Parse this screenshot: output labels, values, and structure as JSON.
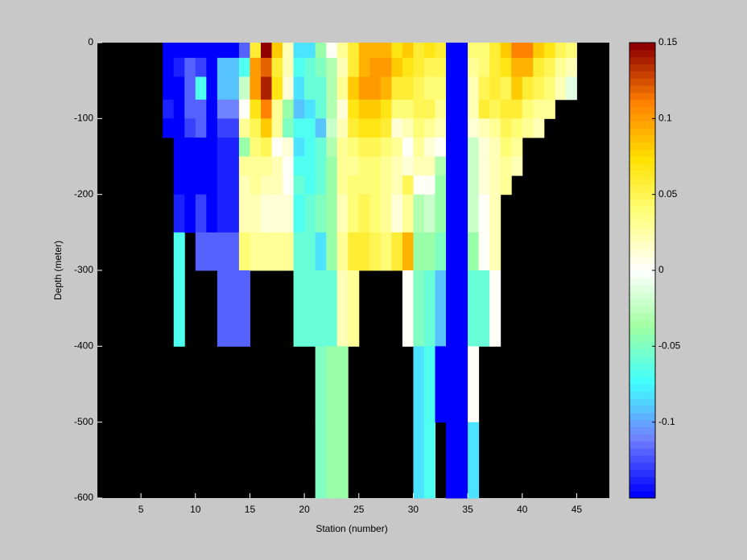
{
  "chart_data": {
    "type": "heatmap",
    "xlabel": "Station (number)",
    "ylabel": "Depth (meter)",
    "xlim": [
      1,
      48
    ],
    "ylim": [
      -600,
      0
    ],
    "xticks": [
      5,
      10,
      15,
      20,
      25,
      30,
      35,
      40,
      45
    ],
    "yticks": [
      0,
      -100,
      -200,
      -300,
      -400,
      -500,
      -600
    ],
    "clim": [
      -0.15,
      0.15
    ],
    "cticks": [
      0.15,
      0.1,
      0.05,
      0,
      -0.05,
      -0.1
    ],
    "colormap": [
      "#0000ff",
      "#7080ff",
      "#40ffff",
      "#a0ffa0",
      "#ffffff",
      "#ffff80",
      "#ffe000",
      "#ff8000",
      "#900000"
    ],
    "background": "#000000",
    "x_edges": [
      7,
      8,
      9,
      10,
      11,
      12,
      13,
      14,
      15,
      16,
      17,
      18,
      19,
      20,
      21,
      22,
      23,
      24,
      25,
      26,
      27,
      28,
      29,
      30,
      31,
      32,
      33,
      34,
      35,
      36,
      37,
      38,
      39,
      40,
      41,
      42,
      43,
      44,
      45
    ],
    "y_edges": [
      0,
      -20,
      -45,
      -75,
      -100,
      -125,
      -150,
      -175,
      -200,
      -250,
      -300,
      -400,
      -500,
      -600
    ],
    "values": [
      [
        -0.15,
        -0.15,
        -0.15,
        -0.14,
        -0.15,
        null,
        null,
        null,
        null,
        null,
        null,
        null,
        null
      ],
      [
        -0.15,
        -0.14,
        -0.15,
        -0.15,
        -0.15,
        -0.15,
        -0.15,
        -0.15,
        -0.14,
        -0.07,
        -0.07,
        null,
        null
      ],
      [
        -0.15,
        -0.12,
        -0.12,
        -0.12,
        -0.13,
        -0.15,
        -0.15,
        -0.15,
        -0.15,
        null,
        null,
        null,
        null
      ],
      [
        -0.15,
        -0.13,
        -0.07,
        -0.12,
        -0.12,
        -0.15,
        -0.15,
        -0.15,
        -0.13,
        -0.12,
        null,
        null,
        null
      ],
      [
        -0.15,
        -0.15,
        -0.15,
        -0.15,
        -0.15,
        -0.15,
        -0.15,
        -0.15,
        -0.15,
        -0.12,
        null,
        null,
        null
      ],
      [
        -0.15,
        -0.09,
        -0.09,
        -0.11,
        -0.13,
        -0.14,
        -0.14,
        -0.14,
        -0.14,
        -0.12,
        -0.12,
        null,
        null
      ],
      [
        -0.15,
        -0.09,
        -0.09,
        -0.11,
        -0.13,
        -0.14,
        -0.14,
        -0.14,
        -0.14,
        -0.12,
        -0.12,
        null,
        null
      ],
      [
        -0.12,
        -0.07,
        -0.02,
        0.0,
        0.03,
        -0.04,
        0.03,
        0.02,
        0.02,
        0.04,
        -0.12,
        null,
        null
      ],
      [
        0.06,
        0.1,
        0.1,
        0.07,
        0.05,
        0.04,
        0.03,
        0.03,
        0.02,
        0.03,
        null,
        null,
        null
      ],
      [
        0.15,
        0.12,
        0.14,
        0.11,
        0.08,
        0.05,
        0.03,
        0.02,
        0.01,
        0.03,
        null,
        null,
        null
      ],
      [
        0.08,
        0.06,
        0.07,
        0.03,
        0.03,
        0.0,
        0.02,
        0.02,
        0.01,
        0.03,
        null,
        null,
        null
      ],
      [
        0.02,
        0.02,
        0.01,
        -0.04,
        -0.05,
        0.01,
        0.0,
        0.0,
        0.01,
        0.03,
        null,
        null,
        null
      ],
      [
        -0.08,
        -0.07,
        -0.08,
        -0.09,
        -0.07,
        -0.08,
        -0.07,
        -0.06,
        -0.07,
        -0.06,
        -0.06,
        null,
        null
      ],
      [
        -0.08,
        -0.06,
        -0.06,
        -0.08,
        -0.07,
        -0.07,
        -0.07,
        -0.07,
        -0.06,
        -0.06,
        -0.06,
        null,
        null
      ],
      [
        -0.04,
        -0.05,
        -0.06,
        -0.06,
        -0.09,
        -0.06,
        -0.06,
        -0.06,
        -0.05,
        -0.08,
        -0.06,
        -0.05,
        -0.05
      ],
      [
        0.0,
        -0.03,
        -0.03,
        -0.03,
        -0.02,
        -0.03,
        -0.04,
        -0.04,
        -0.04,
        -0.04,
        -0.06,
        -0.04,
        -0.04
      ],
      [
        0.03,
        0.02,
        0.03,
        0.01,
        0.02,
        0.03,
        0.03,
        0.03,
        0.02,
        0.03,
        0.02,
        -0.04,
        -0.04
      ],
      [
        0.06,
        0.06,
        0.08,
        0.07,
        0.06,
        0.04,
        0.03,
        0.04,
        0.04,
        0.06,
        0.03,
        null,
        null
      ],
      [
        0.09,
        0.09,
        0.1,
        0.08,
        0.07,
        0.05,
        0.04,
        0.04,
        0.05,
        0.06,
        null,
        null,
        null
      ],
      [
        0.09,
        0.1,
        0.1,
        0.08,
        0.07,
        0.05,
        0.04,
        0.04,
        0.04,
        0.05,
        null,
        null,
        null
      ],
      [
        0.09,
        0.1,
        0.09,
        0.07,
        0.06,
        0.04,
        0.03,
        0.03,
        0.03,
        0.04,
        null,
        null,
        null
      ],
      [
        0.07,
        0.08,
        0.06,
        0.04,
        0.01,
        0.03,
        0.02,
        0.02,
        0.01,
        0.06,
        null,
        null,
        null
      ],
      [
        0.08,
        0.07,
        0.06,
        0.04,
        0.02,
        0.0,
        0.01,
        0.05,
        0.03,
        0.09,
        0.0,
        null,
        null
      ],
      [
        0.06,
        0.06,
        0.05,
        0.05,
        0.04,
        0.03,
        0.02,
        0.0,
        -0.03,
        -0.04,
        -0.05,
        -0.08,
        -0.08
      ],
      [
        0.07,
        0.05,
        0.04,
        0.05,
        0.03,
        0.01,
        0.02,
        0.0,
        -0.02,
        -0.04,
        -0.06,
        -0.07,
        -0.07
      ],
      [
        0.06,
        0.05,
        0.04,
        0.03,
        0.02,
        0.0,
        -0.03,
        -0.04,
        -0.04,
        -0.05,
        -0.09,
        -0.15,
        null
      ],
      [
        -0.15,
        -0.15,
        -0.15,
        -0.15,
        -0.15,
        -0.15,
        -0.15,
        -0.15,
        -0.15,
        -0.15,
        -0.15,
        -0.15,
        -0.15
      ],
      [
        -0.15,
        -0.15,
        -0.15,
        -0.15,
        -0.15,
        -0.15,
        -0.15,
        -0.15,
        -0.15,
        -0.15,
        -0.15,
        -0.15,
        -0.15
      ],
      [
        0.04,
        0.03,
        0.02,
        0.02,
        0.01,
        -0.02,
        -0.02,
        -0.02,
        -0.02,
        -0.04,
        -0.06,
        0.0,
        -0.08
      ],
      [
        0.04,
        0.04,
        0.05,
        0.06,
        0.02,
        0.01,
        0.01,
        0.01,
        0.0,
        0.0,
        -0.06,
        null,
        null
      ],
      [
        0.06,
        0.06,
        0.06,
        0.05,
        0.03,
        0.02,
        0.02,
        0.02,
        0.02,
        0.02,
        0.0,
        null,
        null
      ],
      [
        0.08,
        0.07,
        0.05,
        0.06,
        0.05,
        0.04,
        0.03,
        0.03,
        null,
        null,
        null,
        null,
        null
      ],
      [
        0.11,
        0.09,
        0.08,
        0.06,
        0.04,
        0.03,
        0.02,
        null,
        null,
        null,
        null,
        null,
        null
      ],
      [
        0.11,
        0.09,
        0.06,
        0.04,
        0.03,
        null,
        null,
        null,
        null,
        null,
        null,
        null,
        null
      ],
      [
        0.08,
        0.06,
        0.05,
        0.03,
        0.02,
        null,
        null,
        null,
        null,
        null,
        null,
        null,
        null
      ],
      [
        0.07,
        0.05,
        0.04,
        0.03,
        null,
        null,
        null,
        null,
        null,
        null,
        null,
        null,
        null
      ],
      [
        0.05,
        0.03,
        0.02,
        null,
        null,
        null,
        null,
        null,
        null,
        null,
        null,
        null,
        null
      ],
      [
        0.04,
        0.02,
        -0.01,
        null,
        null,
        null,
        null,
        null,
        null,
        null,
        null,
        null,
        null
      ]
    ]
  }
}
